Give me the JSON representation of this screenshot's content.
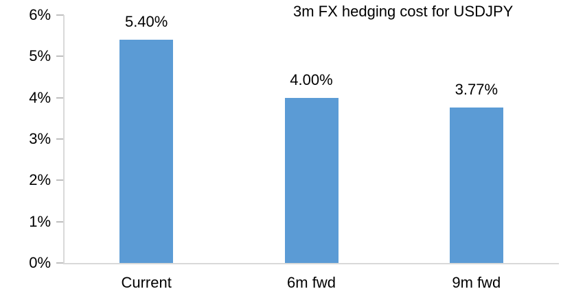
{
  "chart_data": {
    "type": "bar",
    "title": "3m FX hedging cost for USDJPY",
    "categories": [
      "Current",
      "6m fwd",
      "9m fwd"
    ],
    "values": [
      5.4,
      4.0,
      3.77
    ],
    "value_labels": [
      "5.40%",
      "4.00%",
      "3.77%"
    ],
    "xlabel": "",
    "ylabel": "",
    "ylim": [
      0,
      6
    ],
    "y_ticks": [
      0,
      1,
      2,
      3,
      4,
      5,
      6
    ],
    "y_tick_labels": [
      "0%",
      "1%",
      "2%",
      "3%",
      "4%",
      "5%",
      "6%"
    ],
    "grid": false,
    "legend": false,
    "colors": {
      "bar": "#5B9BD5",
      "axis_line": "#D9D9D9",
      "tick_mark": "#BFBFBF",
      "text": "#000000",
      "background": "#FFFFFF"
    }
  }
}
